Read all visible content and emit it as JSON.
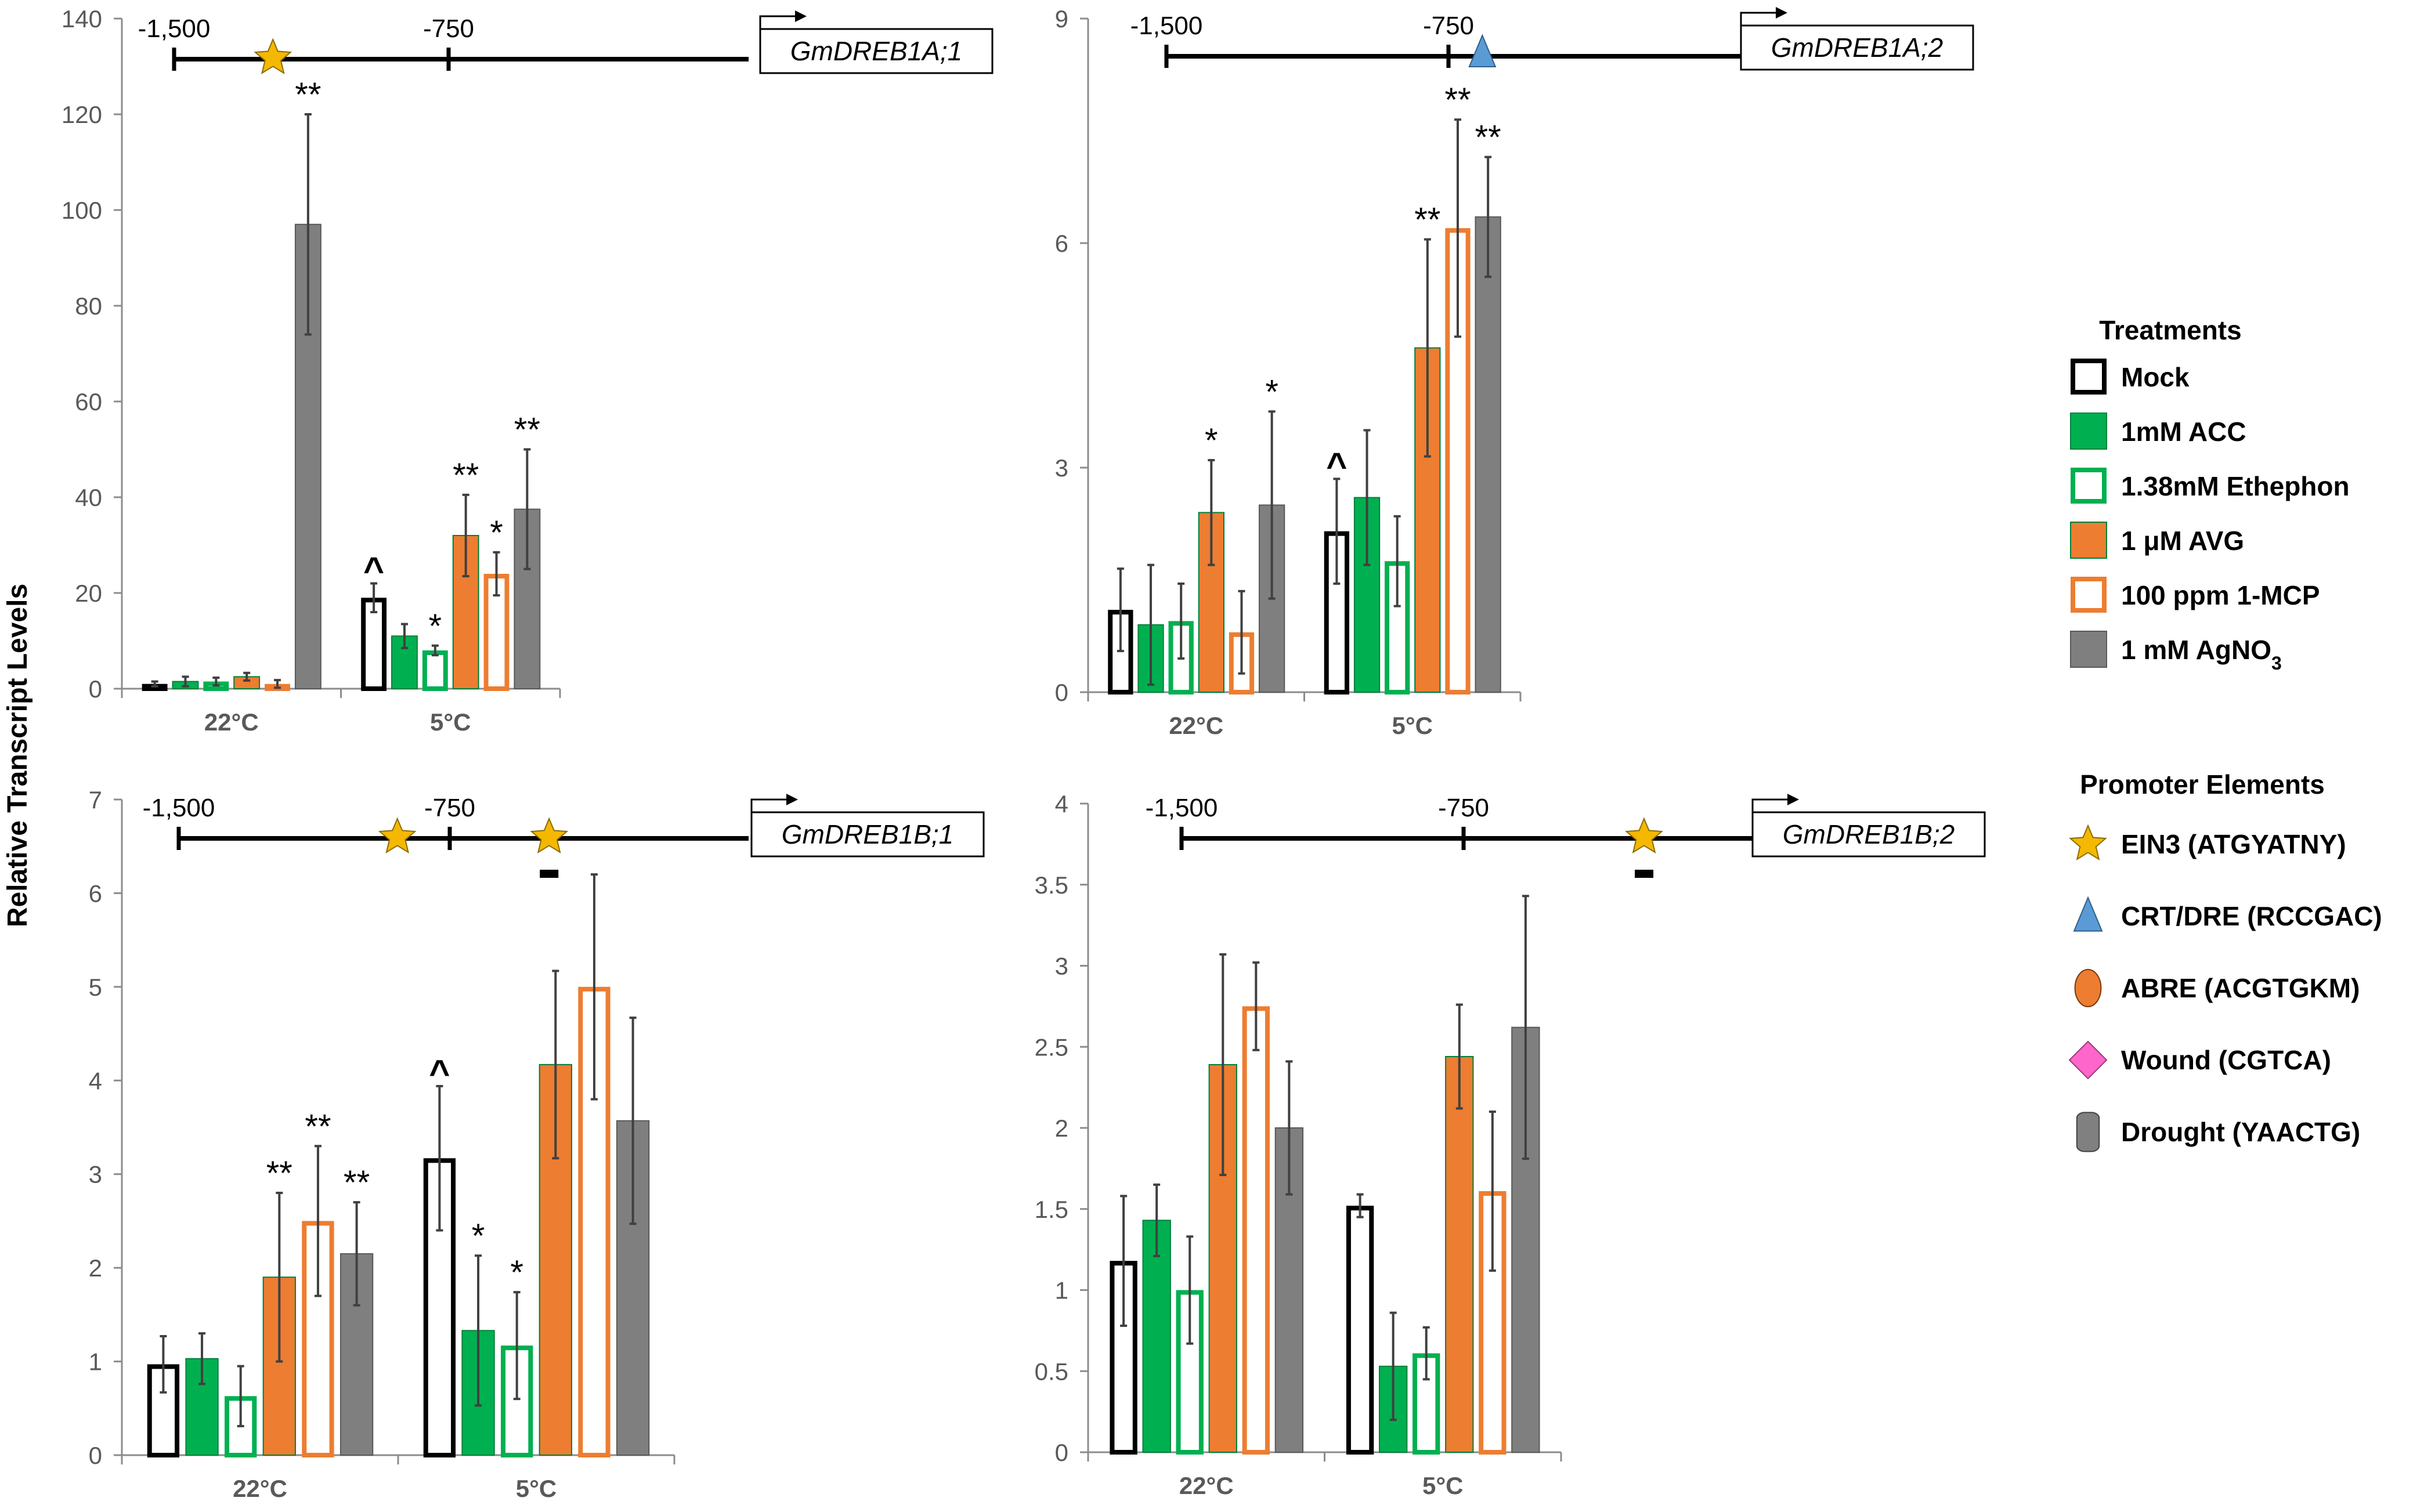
{
  "figure": {
    "ylabel": "Relative Transcript Levels",
    "legend_title": "Treatments",
    "promoter_title": "Promoter Elements"
  },
  "treatments": [
    {
      "key": "mock",
      "label": "Mock",
      "color": "#000000",
      "filled": false,
      "errColor": "#7f7f7f"
    },
    {
      "key": "acc",
      "label": "1mM ACC",
      "color": "#00b050",
      "filled": true,
      "errColor": "#404040"
    },
    {
      "key": "ethephon",
      "label": "1.38mM Ethephon",
      "color": "#00b050",
      "filled": false,
      "errColor": "#404040"
    },
    {
      "key": "avg",
      "label": "1 μM AVG",
      "color": "#ed7d31",
      "filled": true,
      "errColor": "#404040"
    },
    {
      "key": "mcp",
      "label": "100 ppm 1-MCP",
      "color": "#ed7d31",
      "filled": false,
      "errColor": "#404040"
    },
    {
      "key": "agno3",
      "label": "1 mM AgNO",
      "label_sub": "3",
      "color": "#7f7f7f",
      "filled": true,
      "errColor": "#404040"
    }
  ],
  "promoter_elements": [
    {
      "shape": "star",
      "label": "EIN3 (ATGYATNY)",
      "color": "#f5b800"
    },
    {
      "shape": "triangle",
      "label": "CRT/DRE (RCCGAC)",
      "color": "#5b9bd5"
    },
    {
      "shape": "ellipse",
      "label": "ABRE (ACGTGKM)",
      "color": "#ed7d31"
    },
    {
      "shape": "diamond",
      "label": "Wound (CGTCA)",
      "color": "#ff66cc"
    },
    {
      "shape": "cylinder",
      "label": "Drought (YAACTG)",
      "color": "#808080"
    }
  ],
  "chart_data": [
    {
      "type": "bar",
      "gene": "GmDREB1A;1",
      "categories": [
        "22°C",
        "5°C"
      ],
      "ylim": [
        0,
        140
      ],
      "yticks": [
        "0",
        "20",
        "40",
        "60",
        "80",
        "100",
        "120",
        "140"
      ],
      "series": [
        {
          "name": "Mock",
          "values": [
            1,
            19
          ],
          "err": [
            0.5,
            3
          ]
        },
        {
          "name": "1mM ACC",
          "values": [
            1.5,
            11
          ],
          "err": [
            1,
            2.5
          ]
        },
        {
          "name": "1.38mM Ethephon",
          "values": [
            1.5,
            8
          ],
          "err": [
            0.8,
            1
          ]
        },
        {
          "name": "1 μM AVG",
          "values": [
            2.5,
            32
          ],
          "err": [
            0.8,
            8.5
          ]
        },
        {
          "name": "100 ppm 1-MCP",
          "values": [
            1,
            24
          ],
          "err": [
            0.8,
            4.5
          ]
        },
        {
          "name": "1 mM AgNO3",
          "values": [
            97,
            37.5
          ],
          "err": [
            23,
            12.5
          ]
        }
      ],
      "annotations": [
        [
          "",
          ""
        ],
        [
          "",
          ""
        ],
        [
          "",
          "*"
        ],
        [
          "",
          "**"
        ],
        [
          "",
          "*"
        ],
        [
          "**",
          "**"
        ]
      ],
      "mock_marks": [
        "",
        "^"
      ],
      "promoter": {
        "tick_labels": [
          "-1,500",
          "-750"
        ],
        "elements": [
          {
            "shape": "star",
            "pos": -1230
          }
        ],
        "minus_bars": []
      }
    },
    {
      "type": "bar",
      "gene": "GmDREB1A;2",
      "categories": [
        "22°C",
        "5°C"
      ],
      "ylim": [
        0,
        9
      ],
      "yticks": [
        "0",
        "3",
        "6",
        "9"
      ],
      "series": [
        {
          "name": "Mock",
          "values": [
            1.1,
            2.15
          ],
          "err": [
            0.55,
            0.7
          ]
        },
        {
          "name": "1mM ACC",
          "values": [
            0.9,
            2.6
          ],
          "err": [
            0.8,
            0.9
          ]
        },
        {
          "name": "1.38mM Ethephon",
          "values": [
            0.95,
            1.75
          ],
          "err": [
            0.5,
            0.6
          ]
        },
        {
          "name": "1 μM AVG",
          "values": [
            2.4,
            4.6
          ],
          "err": [
            0.7,
            1.45
          ]
        },
        {
          "name": "100 ppm 1-MCP",
          "values": [
            0.8,
            6.2
          ],
          "err": [
            0.55,
            1.45
          ]
        },
        {
          "name": "1 mM AgNO3",
          "values": [
            2.5,
            6.35
          ],
          "err": [
            1.25,
            0.8
          ]
        }
      ],
      "annotations": [
        [
          "",
          ""
        ],
        [
          "",
          ""
        ],
        [
          "",
          ""
        ],
        [
          "*",
          "**"
        ],
        [
          "",
          "**"
        ],
        [
          "*",
          "**"
        ]
      ],
      "mock_marks": [
        "",
        "^"
      ],
      "promoter": {
        "tick_labels": [
          "-1,500",
          "-750"
        ],
        "elements": [
          {
            "shape": "triangle",
            "pos": -660
          }
        ],
        "minus_bars": []
      }
    },
    {
      "type": "bar",
      "gene": "GmDREB1B;1",
      "categories": [
        "22°C",
        "5°C"
      ],
      "ylim": [
        0,
        7
      ],
      "yticks": [
        "0",
        "1",
        "2",
        "3",
        "4",
        "5",
        "6",
        "7"
      ],
      "series": [
        {
          "name": "Mock",
          "values": [
            0.97,
            3.17
          ],
          "err": [
            0.3,
            0.77
          ]
        },
        {
          "name": "1mM ACC",
          "values": [
            1.03,
            1.33
          ],
          "err": [
            0.27,
            0.8
          ]
        },
        {
          "name": "1.38mM Ethephon",
          "values": [
            0.63,
            1.17
          ],
          "err": [
            0.32,
            0.57
          ]
        },
        {
          "name": "1 μM AVG",
          "values": [
            1.9,
            4.17
          ],
          "err": [
            0.9,
            1.0
          ]
        },
        {
          "name": "100 ppm 1-MCP",
          "values": [
            2.5,
            5.0
          ],
          "err": [
            0.8,
            1.2
          ]
        },
        {
          "name": "1 mM AgNO3",
          "values": [
            2.15,
            3.57
          ],
          "err": [
            0.55,
            1.1
          ]
        }
      ],
      "annotations": [
        [
          "",
          ""
        ],
        [
          "",
          "*"
        ],
        [
          "",
          "*"
        ],
        [
          "**",
          ""
        ],
        [
          "**",
          ""
        ],
        [
          "**",
          ""
        ]
      ],
      "mock_marks": [
        "",
        "^"
      ],
      "promoter": {
        "tick_labels": [
          "-1,500",
          "-750"
        ],
        "elements": [
          {
            "shape": "star",
            "pos": -895
          },
          {
            "shape": "star",
            "pos": -475
          }
        ],
        "minus_bars": [
          -475
        ]
      }
    },
    {
      "type": "bar",
      "gene": "GmDREB1B;2",
      "categories": [
        "22°C",
        "5°C"
      ],
      "ylim": [
        0,
        4
      ],
      "yticks": [
        "0",
        "0.5",
        "1",
        "1.5",
        "2",
        "2.5",
        "3",
        "3.5",
        "4"
      ],
      "series": [
        {
          "name": "Mock",
          "values": [
            1.18,
            1.52
          ],
          "err": [
            0.4,
            0.07
          ]
        },
        {
          "name": "1mM ACC",
          "values": [
            1.43,
            0.53
          ],
          "err": [
            0.22,
            0.33
          ]
        },
        {
          "name": "1.38mM Ethephon",
          "values": [
            1.0,
            0.61
          ],
          "err": [
            0.33,
            0.16
          ]
        },
        {
          "name": "1 μM AVG",
          "values": [
            2.39,
            2.44
          ],
          "err": [
            0.68,
            0.32
          ]
        },
        {
          "name": "100 ppm 1-MCP",
          "values": [
            2.75,
            1.61
          ],
          "err": [
            0.27,
            0.49
          ]
        },
        {
          "name": "1 mM AgNO3",
          "values": [
            2.0,
            2.62
          ],
          "err": [
            0.41,
            0.81
          ]
        }
      ],
      "annotations": [
        [
          "",
          ""
        ],
        [
          "",
          ""
        ],
        [
          "",
          ""
        ],
        [
          "",
          ""
        ],
        [
          "",
          ""
        ],
        [
          "",
          ""
        ]
      ],
      "mock_marks": [
        "",
        ""
      ],
      "promoter": {
        "tick_labels": [
          "-1,500",
          "-750"
        ],
        "elements": [
          {
            "shape": "star",
            "pos": -270
          }
        ],
        "minus_bars": [
          -270
        ]
      }
    }
  ]
}
